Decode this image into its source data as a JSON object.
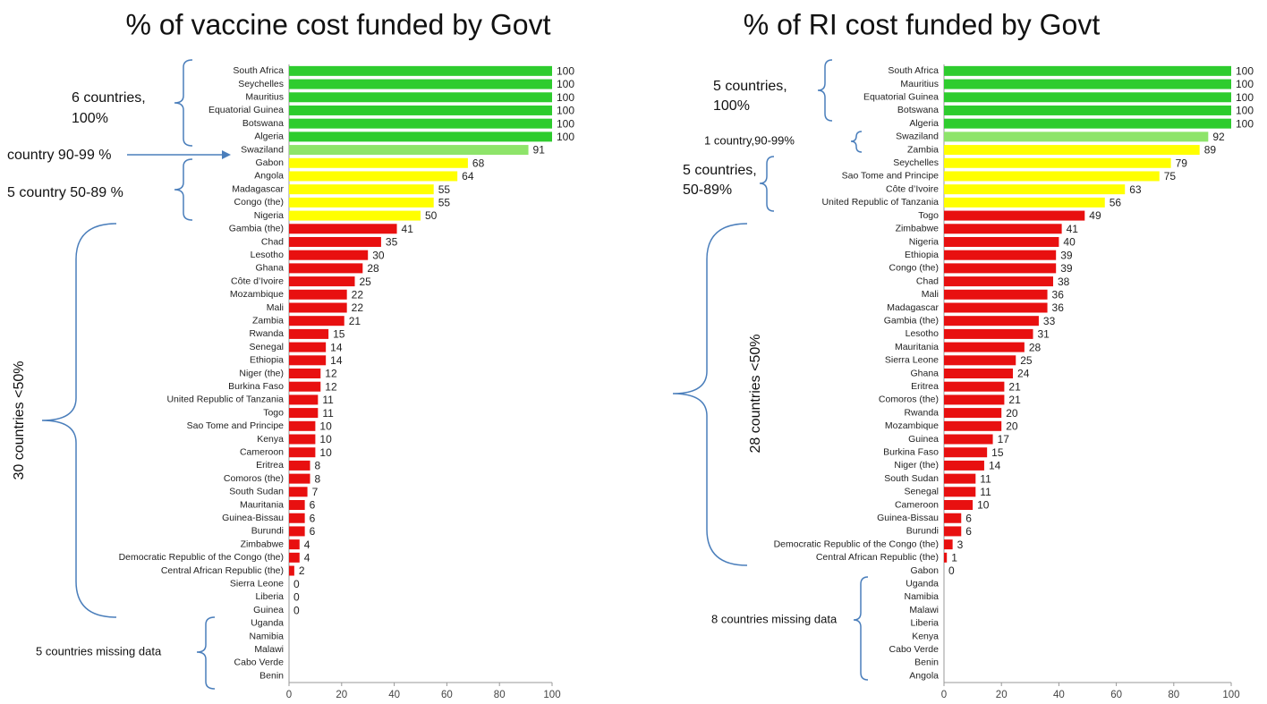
{
  "chart_data": [
    {
      "type": "bar",
      "orientation": "horizontal",
      "title": "% of vaccine cost funded by Govt",
      "categories": [
        "South Africa",
        "Seychelles",
        "Mauritius",
        "Equatorial Guinea",
        "Botswana",
        "Algeria",
        "Swaziland",
        "Gabon",
        "Angola",
        "Madagascar",
        "Congo (the)",
        "Nigeria",
        "Gambia (the)",
        "Chad",
        "Lesotho",
        "Ghana",
        "Côte d’Ivoire",
        "Mozambique",
        "Mali",
        "Zambia",
        "Rwanda",
        "Senegal",
        "Ethiopia",
        "Niger (the)",
        "Burkina Faso",
        "United Republic of Tanzania",
        "Togo",
        "Sao Tome and Principe",
        "Kenya",
        "Cameroon",
        "Eritrea",
        "Comoros (the)",
        "South Sudan",
        "Mauritania",
        "Guinea-Bissau",
        "Burundi",
        "Zimbabwe",
        "Democratic Republic of the Congo (the)",
        "Central African Republic (the)",
        "Sierra Leone",
        "Liberia",
        "Guinea",
        "Uganda",
        "Namibia",
        "Malawi",
        "Cabo Verde",
        "Benin"
      ],
      "values": [
        100,
        100,
        100,
        100,
        100,
        100,
        91,
        68,
        64,
        55,
        55,
        50,
        41,
        35,
        30,
        28,
        25,
        22,
        22,
        21,
        15,
        14,
        14,
        12,
        12,
        11,
        11,
        10,
        10,
        10,
        8,
        8,
        7,
        6,
        6,
        6,
        4,
        4,
        2,
        0,
        0,
        0,
        null,
        null,
        null,
        null,
        null
      ],
      "colors": [
        "#2ecc2e",
        "#2ecc2e",
        "#2ecc2e",
        "#2ecc2e",
        "#2ecc2e",
        "#2ecc2e",
        "#8ee46a",
        "#ffff00",
        "#ffff00",
        "#ffff00",
        "#ffff00",
        "#ffff00",
        "#e81010",
        "#e81010",
        "#e81010",
        "#e81010",
        "#e81010",
        "#e81010",
        "#e81010",
        "#e81010",
        "#e81010",
        "#e81010",
        "#e81010",
        "#e81010",
        "#e81010",
        "#e81010",
        "#e81010",
        "#e81010",
        "#e81010",
        "#e81010",
        "#e81010",
        "#e81010",
        "#e81010",
        "#e81010",
        "#e81010",
        "#e81010",
        "#e81010",
        "#e81010",
        "#e81010",
        "#e81010",
        "#e81010",
        "#e81010",
        null,
        null,
        null,
        null,
        null
      ],
      "xlim": [
        0,
        100
      ],
      "xticks": [
        0,
        20,
        40,
        60,
        80,
        100
      ],
      "annotations": [
        [
          "6 countries,",
          "100%"
        ],
        [
          "country  90-99 %"
        ],
        [
          "5 country  50-89 %"
        ],
        [
          "30 countries <50%"
        ],
        [
          "5 countries missing data"
        ]
      ]
    },
    {
      "type": "bar",
      "orientation": "horizontal",
      "title": "% of RI cost funded by Govt",
      "categories": [
        "South Africa",
        "Mauritius",
        "Equatorial Guinea",
        "Botswana",
        "Algeria",
        "Swaziland",
        "Zambia",
        "Seychelles",
        "Sao Tome and Principe",
        "Côte d’Ivoire",
        "United Republic of Tanzania",
        "Togo",
        "Zimbabwe",
        "Nigeria",
        "Ethiopia",
        "Congo (the)",
        "Chad",
        "Mali",
        "Madagascar",
        "Gambia (the)",
        "Lesotho",
        "Mauritania",
        "Sierra Leone",
        "Ghana",
        "Eritrea",
        "Comoros (the)",
        "Rwanda",
        "Mozambique",
        "Guinea",
        "Burkina Faso",
        "Niger (the)",
        "South Sudan",
        "Senegal",
        "Cameroon",
        "Guinea-Bissau",
        "Burundi",
        "Democratic Republic of the Congo (the)",
        "Central African Republic (the)",
        "Gabon",
        "Uganda",
        "Namibia",
        "Malawi",
        "Liberia",
        "Kenya",
        "Cabo Verde",
        "Benin",
        "Angola"
      ],
      "values": [
        100,
        100,
        100,
        100,
        100,
        92,
        89,
        79,
        75,
        63,
        56,
        49,
        41,
        40,
        39,
        39,
        38,
        36,
        36,
        33,
        31,
        28,
        25,
        24,
        21,
        21,
        20,
        20,
        17,
        15,
        14,
        11,
        11,
        10,
        6,
        6,
        3,
        1,
        0,
        null,
        null,
        null,
        null,
        null,
        null,
        null,
        null
      ],
      "colors": [
        "#2ecc2e",
        "#2ecc2e",
        "#2ecc2e",
        "#2ecc2e",
        "#2ecc2e",
        "#8ee46a",
        "#ffff00",
        "#ffff00",
        "#ffff00",
        "#ffff00",
        "#ffff00",
        "#e81010",
        "#e81010",
        "#e81010",
        "#e81010",
        "#e81010",
        "#e81010",
        "#e81010",
        "#e81010",
        "#e81010",
        "#e81010",
        "#e81010",
        "#e81010",
        "#e81010",
        "#e81010",
        "#e81010",
        "#e81010",
        "#e81010",
        "#e81010",
        "#e81010",
        "#e81010",
        "#e81010",
        "#e81010",
        "#e81010",
        "#e81010",
        "#e81010",
        "#e81010",
        "#e81010",
        "#e81010",
        null,
        null,
        null,
        null,
        null,
        null,
        null,
        null
      ],
      "xlim": [
        0,
        100
      ],
      "xticks": [
        0,
        20,
        40,
        60,
        80,
        100
      ],
      "annotations": [
        [
          "5 countries,",
          "100%"
        ],
        [
          "1 country,90-99%"
        ],
        [
          "5 countries,",
          "50-89%"
        ],
        [
          "28 countries <50%"
        ],
        [
          "8 countries missing data"
        ]
      ]
    }
  ]
}
